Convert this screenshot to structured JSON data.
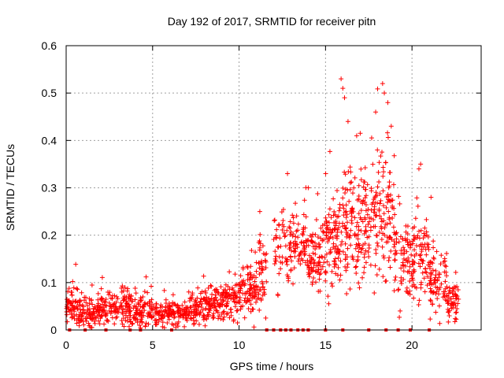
{
  "chart_data": {
    "type": "scatter",
    "title": "Day 192 of 2017, SRMTID for receiver pitn",
    "xlabel": "GPS time / hours",
    "ylabel": "SRMTID / TECUs",
    "xlim": [
      0,
      24
    ],
    "ylim": [
      0,
      0.6
    ],
    "xticks": [
      0,
      5,
      10,
      15,
      20
    ],
    "yticks": [
      0,
      0.1,
      0.2,
      0.3,
      0.4,
      0.5,
      0.6
    ],
    "xtick_labels": [
      "0",
      "5",
      "10",
      "15",
      "20"
    ],
    "ytick_labels": [
      "0",
      "0.1",
      "0.2",
      "0.3",
      "0.4",
      "0.5",
      "0.6"
    ],
    "grid": true,
    "marker": "plus",
    "color": "#ff0000",
    "gaps_at_zero": [
      0.2,
      1.1,
      2.3,
      3.7,
      4.3,
      6.1,
      11.6,
      12.0,
      12.4,
      12.7,
      13.0,
      13.4,
      13.7,
      14.0,
      15.0,
      16.0,
      17.5,
      18.5,
      19.2,
      19.9,
      21.0
    ],
    "anchor_points": [
      {
        "x": 15.9,
        "y": 0.53
      },
      {
        "x": 16.0,
        "y": 0.51
      },
      {
        "x": 16.1,
        "y": 0.49
      },
      {
        "x": 18.3,
        "y": 0.52
      },
      {
        "x": 18.4,
        "y": 0.5
      },
      {
        "x": 18.6,
        "y": 0.48
      },
      {
        "x": 16.3,
        "y": 0.44
      },
      {
        "x": 16.8,
        "y": 0.41
      },
      {
        "x": 17.9,
        "y": 0.46
      },
      {
        "x": 18.8,
        "y": 0.43
      },
      {
        "x": 18.0,
        "y": 0.38
      },
      {
        "x": 20.5,
        "y": 0.35
      },
      {
        "x": 20.4,
        "y": 0.34
      },
      {
        "x": 12.8,
        "y": 0.33
      },
      {
        "x": 14.0,
        "y": 0.3
      },
      {
        "x": 11.2,
        "y": 0.25
      },
      {
        "x": 21.1,
        "y": 0.28
      }
    ],
    "series": [
      {
        "name": "SRMTID",
        "segments": [
          {
            "x0": 0.0,
            "x1": 1.0,
            "mean": 0.045,
            "spread": 0.035,
            "n": 85
          },
          {
            "x0": 1.0,
            "x1": 2.0,
            "mean": 0.04,
            "spread": 0.03,
            "n": 75
          },
          {
            "x0": 2.0,
            "x1": 3.0,
            "mean": 0.045,
            "spread": 0.03,
            "n": 70
          },
          {
            "x0": 3.0,
            "x1": 4.0,
            "mean": 0.05,
            "spread": 0.035,
            "n": 75
          },
          {
            "x0": 4.0,
            "x1": 5.0,
            "mean": 0.04,
            "spread": 0.03,
            "n": 75
          },
          {
            "x0": 5.0,
            "x1": 6.0,
            "mean": 0.035,
            "spread": 0.025,
            "n": 70
          },
          {
            "x0": 6.0,
            "x1": 7.0,
            "mean": 0.035,
            "spread": 0.025,
            "n": 70
          },
          {
            "x0": 7.0,
            "x1": 8.0,
            "mean": 0.045,
            "spread": 0.03,
            "n": 75
          },
          {
            "x0": 8.0,
            "x1": 9.0,
            "mean": 0.055,
            "spread": 0.035,
            "n": 80
          },
          {
            "x0": 9.0,
            "x1": 10.0,
            "mean": 0.065,
            "spread": 0.04,
            "n": 80
          },
          {
            "x0": 10.0,
            "x1": 11.0,
            "mean": 0.08,
            "spread": 0.05,
            "n": 85
          },
          {
            "x0": 11.0,
            "x1": 11.6,
            "mean": 0.11,
            "spread": 0.07,
            "n": 50
          },
          {
            "x0": 12.0,
            "x1": 13.0,
            "mean": 0.17,
            "spread": 0.07,
            "n": 60
          },
          {
            "x0": 13.0,
            "x1": 14.0,
            "mean": 0.18,
            "spread": 0.07,
            "n": 70
          },
          {
            "x0": 14.0,
            "x1": 15.0,
            "mean": 0.15,
            "spread": 0.06,
            "n": 85
          },
          {
            "x0": 15.0,
            "x1": 16.0,
            "mean": 0.2,
            "spread": 0.1,
            "n": 95
          },
          {
            "x0": 16.0,
            "x1": 17.0,
            "mean": 0.22,
            "spread": 0.11,
            "n": 95
          },
          {
            "x0": 17.0,
            "x1": 18.0,
            "mean": 0.22,
            "spread": 0.1,
            "n": 90
          },
          {
            "x0": 18.0,
            "x1": 19.0,
            "mean": 0.24,
            "spread": 0.12,
            "n": 90
          },
          {
            "x0": 19.0,
            "x1": 20.0,
            "mean": 0.15,
            "spread": 0.07,
            "n": 75
          },
          {
            "x0": 20.0,
            "x1": 21.0,
            "mean": 0.16,
            "spread": 0.08,
            "n": 80
          },
          {
            "x0": 21.0,
            "x1": 22.0,
            "mean": 0.1,
            "spread": 0.06,
            "n": 75
          },
          {
            "x0": 22.0,
            "x1": 22.7,
            "mean": 0.06,
            "spread": 0.035,
            "n": 55
          }
        ]
      }
    ]
  }
}
